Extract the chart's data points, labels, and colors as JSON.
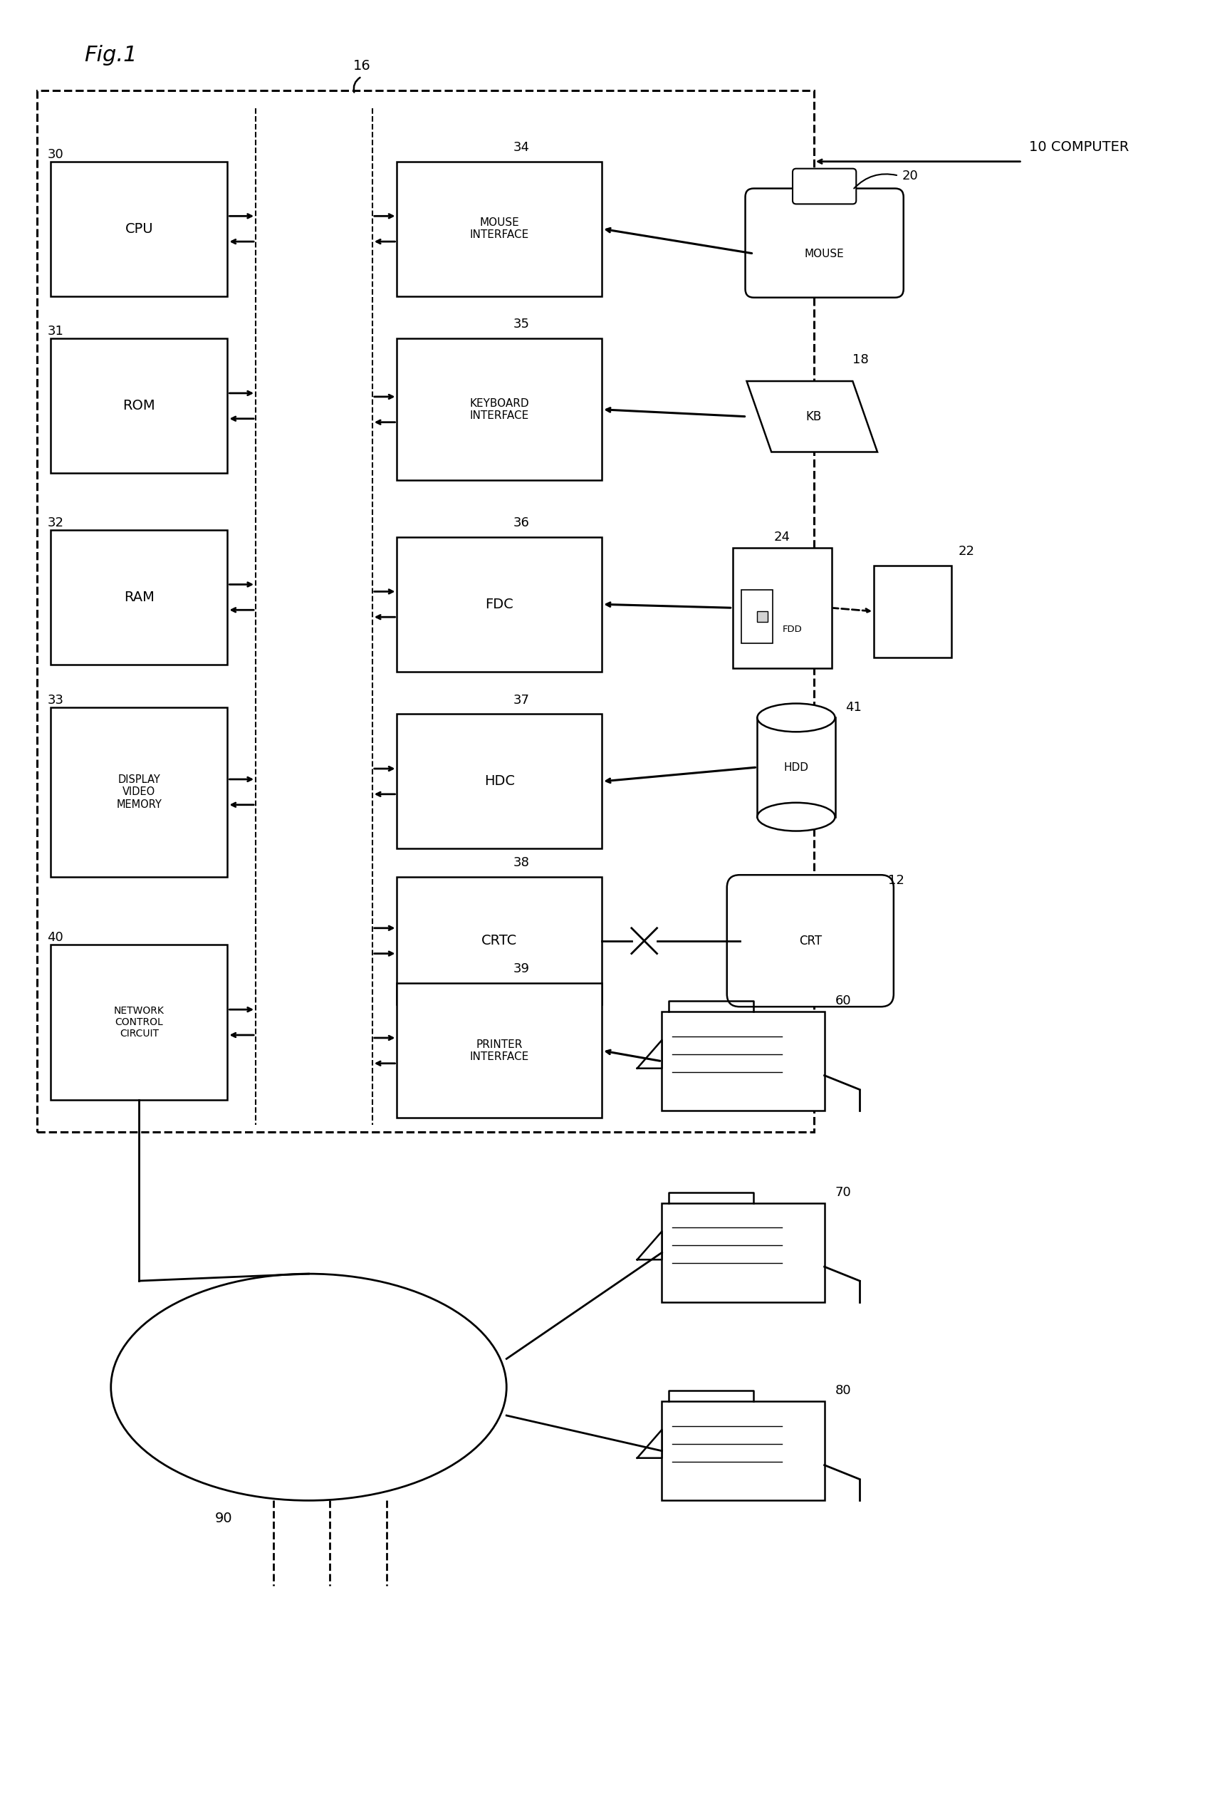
{
  "fig_title": "Fig.1",
  "bg_color": "#ffffff",
  "line_color": "#000000",
  "fig_width": 17.31,
  "fig_height": 25.31,
  "labels": {
    "computer": "10 COMPUTER",
    "cpu": "CPU",
    "rom": "ROM",
    "ram": "RAM",
    "display_video_memory": "DISPLAY\nVIDEO\nMEMORY",
    "network_control_circuit": "NETWORK\nCONTROL\nCIRCUIT",
    "mouse_interface": "MOUSE\nINTERFACE",
    "keyboard_interface": "KEYBOARD\nINTERFACE",
    "fdc": "FDC",
    "hdc": "HDC",
    "crtc": "CRTC",
    "printer_interface": "PRINTER\nINTERFACE",
    "mouse": "MOUSE",
    "kb": "KB",
    "fdd": "FDD",
    "hdd": "HDD",
    "crt": "CRT",
    "n16": "16",
    "n20": "20",
    "n30": "30",
    "n31": "31",
    "n32": "32",
    "n33": "33",
    "n34": "34",
    "n35": "35",
    "n36": "36",
    "n37": "37",
    "n38": "38",
    "n39": "39",
    "n40": "40",
    "n41": "41",
    "n12": "12",
    "n18": "18",
    "n22": "22",
    "n24": "24",
    "n60": "60",
    "n70": "70",
    "n80": "80",
    "n90": "90"
  }
}
